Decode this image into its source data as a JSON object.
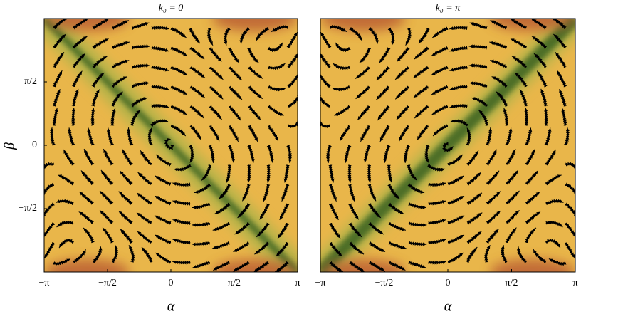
{
  "chart_data": [
    {
      "type": "streamplot",
      "title": "k₀ = 0",
      "xlabel": "α",
      "ylabel": "β",
      "xlim": [
        -3.14159,
        3.14159
      ],
      "ylim": [
        -3.14159,
        3.14159
      ],
      "xticks": [
        {
          "value": -3.14159,
          "label": "−π"
        },
        {
          "value": -1.5708,
          "label": "−π/2"
        },
        0,
        {
          "value": 1.5708,
          "label": "π/2"
        },
        {
          "value": 3.14159,
          "label": "π"
        }
      ],
      "yticks": [
        {
          "value": -1.5708,
          "label": "−π/2"
        },
        0,
        {
          "value": 1.5708,
          "label": "π/2"
        }
      ]
    },
    {
      "type": "streamplot",
      "title": "k₀ = π",
      "xlabel": "α",
      "xlim": [
        -3.14159,
        3.14159
      ],
      "ylim": [
        -3.14159,
        3.14159
      ],
      "xticks": [
        {
          "value": -3.14159,
          "label": "−π"
        },
        {
          "value": -1.5708,
          "label": "−π/2"
        },
        0,
        {
          "value": 1.5708,
          "label": "π/2"
        },
        {
          "value": 3.14159,
          "label": "π"
        }
      ]
    }
  ]
}
